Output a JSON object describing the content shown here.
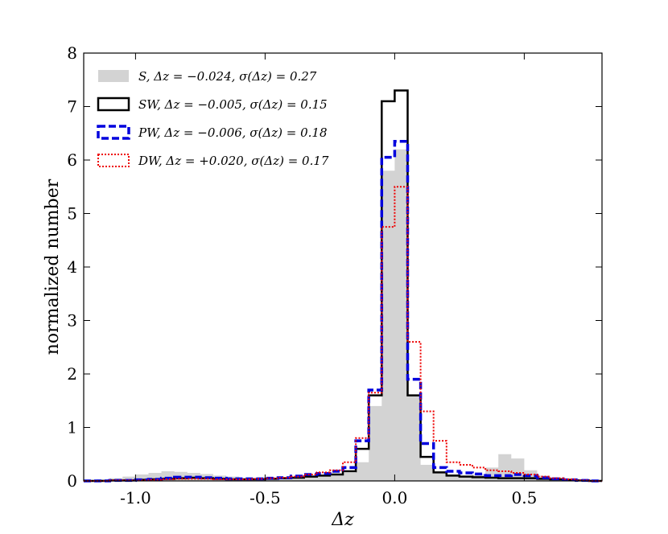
{
  "chart_data": {
    "type": "area",
    "xlabel": "Δz",
    "ylabel": "normalized number",
    "xlim": [
      -1.2,
      0.8
    ],
    "ylim": [
      0,
      8
    ],
    "xticks": [
      -1.0,
      -0.5,
      0.0,
      0.5
    ],
    "xtick_labels": [
      "-1.0",
      "-0.5",
      "0.0",
      "0.5"
    ],
    "yticks": [
      0,
      1,
      2,
      3,
      4,
      5,
      6,
      7,
      8
    ],
    "ytick_labels": [
      "0",
      "1",
      "2",
      "3",
      "4",
      "5",
      "6",
      "7",
      "8"
    ],
    "legend_position": "top-left",
    "bin_edges": [
      -1.2,
      -1.15,
      -1.1,
      -1.05,
      -1.0,
      -0.95,
      -0.9,
      -0.85,
      -0.8,
      -0.75,
      -0.7,
      -0.65,
      -0.6,
      -0.55,
      -0.5,
      -0.45,
      -0.4,
      -0.35,
      -0.3,
      -0.25,
      -0.2,
      -0.15,
      -0.1,
      -0.05,
      0.0,
      0.05,
      0.1,
      0.15,
      0.2,
      0.25,
      0.3,
      0.35,
      0.4,
      0.45,
      0.5,
      0.55,
      0.6,
      0.65,
      0.7,
      0.75,
      0.8
    ],
    "series": [
      {
        "name": "S, \\overline{\\Delta z} = -0.024, \\sigma(\\Delta z) = 0.27",
        "label_text": "S, Δz = −0.024, σ(Δz) = 0.27",
        "style": "filled",
        "color": "#d3d3d3",
        "values": [
          0.02,
          0.03,
          0.05,
          0.08,
          0.12,
          0.15,
          0.18,
          0.17,
          0.15,
          0.13,
          0.1,
          0.08,
          0.05,
          0.05,
          0.05,
          0.06,
          0.06,
          0.08,
          0.1,
          0.12,
          0.15,
          0.35,
          1.4,
          5.8,
          6.2,
          1.6,
          0.3,
          0.16,
          0.12,
          0.1,
          0.12,
          0.25,
          0.5,
          0.42,
          0.2,
          0.1,
          0.05,
          0.03,
          0.02,
          0.01
        ]
      },
      {
        "name": "SW, \\overline{\\Delta z} = -0.005, \\sigma(\\Delta z) = 0.15",
        "label_text": "SW, Δz = −0.005, σ(Δz) = 0.15",
        "style": "step-solid",
        "color": "#000000",
        "values": [
          0.0,
          0.0,
          0.01,
          0.01,
          0.02,
          0.03,
          0.04,
          0.05,
          0.06,
          0.05,
          0.04,
          0.03,
          0.03,
          0.03,
          0.04,
          0.05,
          0.06,
          0.08,
          0.1,
          0.12,
          0.18,
          0.6,
          1.6,
          7.1,
          7.3,
          1.6,
          0.45,
          0.16,
          0.1,
          0.08,
          0.07,
          0.06,
          0.05,
          0.05,
          0.05,
          0.04,
          0.03,
          0.02,
          0.01,
          0.0
        ]
      },
      {
        "name": "PW, \\overline{\\Delta z} = -0.006, \\sigma(\\Delta z) = 0.18",
        "label_text": "PW, Δz = −0.006, σ(Δz) = 0.18",
        "style": "step-dashed",
        "color": "#0000dd",
        "values": [
          0.0,
          0.0,
          0.01,
          0.01,
          0.02,
          0.03,
          0.05,
          0.07,
          0.07,
          0.06,
          0.05,
          0.04,
          0.04,
          0.04,
          0.05,
          0.06,
          0.09,
          0.12,
          0.14,
          0.18,
          0.25,
          0.75,
          1.7,
          6.05,
          6.35,
          1.9,
          0.7,
          0.25,
          0.18,
          0.15,
          0.13,
          0.1,
          0.1,
          0.12,
          0.1,
          0.06,
          0.04,
          0.02,
          0.01,
          0.0
        ]
      },
      {
        "name": "DW, \\overline{\\Delta z} = +0.020, \\sigma(\\Delta z) = 0.17",
        "label_text": "DW, Δz = +0.020, σ(Δz) = 0.17",
        "style": "step-dotted",
        "color": "#ee0000",
        "values": [
          0.0,
          0.0,
          0.01,
          0.01,
          0.01,
          0.02,
          0.03,
          0.04,
          0.04,
          0.04,
          0.03,
          0.03,
          0.03,
          0.04,
          0.05,
          0.06,
          0.08,
          0.12,
          0.16,
          0.2,
          0.35,
          0.8,
          1.65,
          4.75,
          5.5,
          2.6,
          1.3,
          0.75,
          0.35,
          0.3,
          0.25,
          0.2,
          0.18,
          0.15,
          0.12,
          0.08,
          0.05,
          0.03,
          0.01,
          0.0
        ]
      }
    ]
  }
}
